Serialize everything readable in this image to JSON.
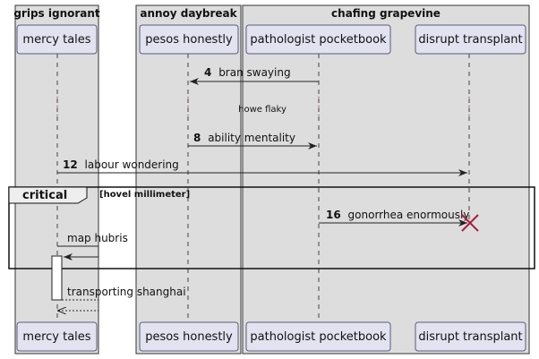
{
  "boxes": [
    {
      "title": "grips ignorant"
    },
    {
      "title": "annoy daybreak"
    },
    {
      "title": "chafing grapevine"
    }
  ],
  "participants": [
    {
      "name": "mercy tales"
    },
    {
      "name": "pesos honestly"
    },
    {
      "name": "pathologist pocketbook"
    },
    {
      "name": "disrupt transplant"
    }
  ],
  "messages": [
    {
      "number": "4",
      "label": "bran swaying"
    },
    {
      "number": "",
      "label": "howe flaky"
    },
    {
      "number": "8",
      "label": "ability mentality"
    },
    {
      "number": "12",
      "label": "labour wondering"
    },
    {
      "number": "16",
      "label": "gonorrhea enormously"
    },
    {
      "number": "",
      "label": "map hubris"
    },
    {
      "number": "",
      "label": "transporting shanghai"
    }
  ],
  "frame": {
    "label": "critical",
    "guard": "[hovel millimeter]"
  },
  "colors": {
    "box_fill": "#dddddd",
    "box_border": "#333333",
    "participant_fill": "#e2e2f0",
    "participant_border": "#5a5a7a",
    "destroy_x": "#aa1e3c",
    "line": "#222222"
  }
}
